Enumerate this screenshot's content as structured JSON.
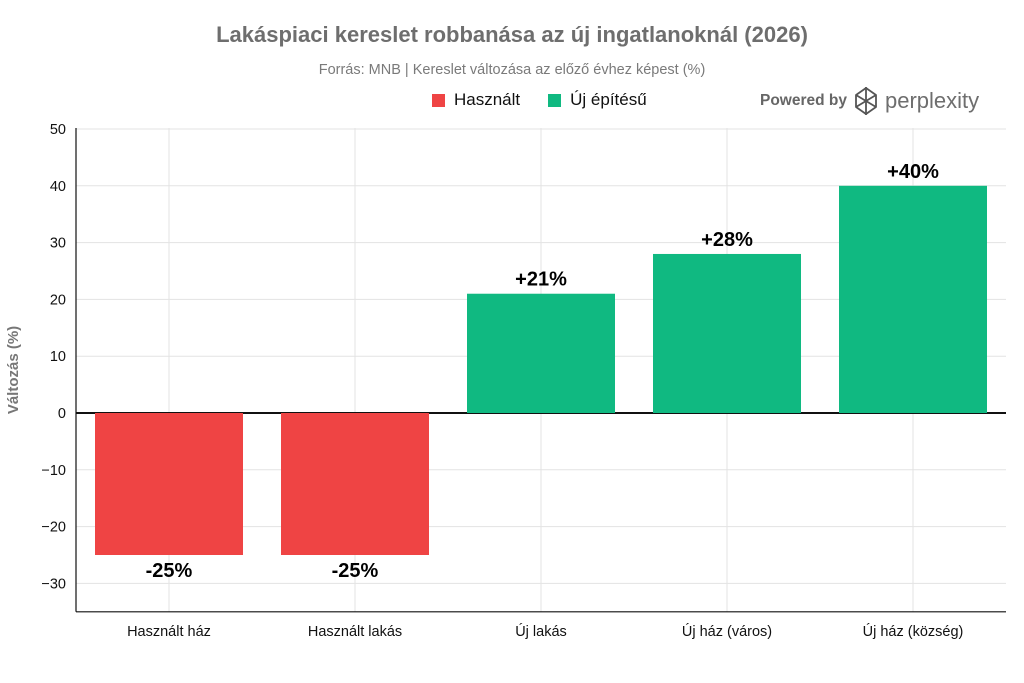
{
  "chart_data": {
    "type": "bar",
    "title": "Lakáspiaci kereslet robbanása az új ingatlanoknál (2026)",
    "subtitle": "Forrás: MNB | Kereslet változása az előző évhez képest (%)",
    "ylabel": "Változás (%)",
    "xlabel": "",
    "ylim": [
      -35,
      50
    ],
    "yticks": [
      "50",
      "40",
      "30",
      "20",
      "10",
      "0",
      "−10",
      "−20",
      "−30"
    ],
    "categories": [
      "Használt ház",
      "Használt lakás",
      "Új lakás",
      "Új ház (város)",
      "Új ház (község)"
    ],
    "values": [
      -25,
      -25,
      21,
      28,
      40
    ],
    "data_labels": [
      "-25%",
      "-25%",
      "+21%",
      "+28%",
      "+40%"
    ],
    "series_membership": [
      "Használt",
      "Használt",
      "Új építésű",
      "Új építésű",
      "Új építésű"
    ],
    "legend": [
      {
        "name": "Használt",
        "color": "#ef4444"
      },
      {
        "name": "Új építésű",
        "color": "#10b981"
      }
    ],
    "legend_position": "top",
    "grid": true,
    "colors": {
      "negative": "#ef4444",
      "positive": "#10b981"
    }
  },
  "branding": {
    "powered_by": "Powered by",
    "brand_name": "perplexity",
    "logo_icon": "perplexity-logo-icon"
  }
}
